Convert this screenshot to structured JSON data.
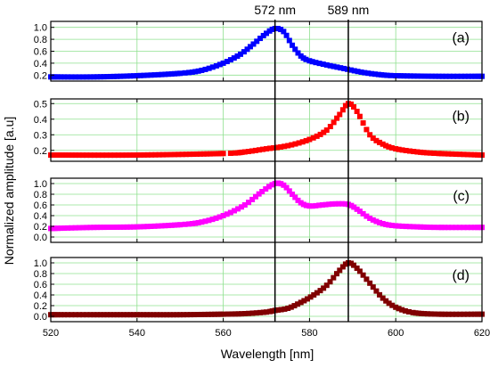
{
  "chart_data": {
    "type": "line",
    "xlabel": "Wavelength [nm]",
    "ylabel": "Normalized amplitude [a.u]",
    "xlim": [
      520,
      620
    ],
    "xticks": [
      520,
      540,
      560,
      580,
      600,
      620
    ],
    "grid": true,
    "reference_lines": [
      {
        "x": 572,
        "label": "572 nm"
      },
      {
        "x": 589,
        "label": "589 nm"
      }
    ],
    "panels": [
      {
        "label": "(a)",
        "color": "#0000ff",
        "ylim": [
          0.1,
          1.1
        ],
        "yticks": [
          0.2,
          0.4,
          0.6,
          0.8,
          1.0
        ],
        "yticklabels": [
          "0.2",
          "0.4",
          "0.6",
          "0.8",
          "1.0"
        ],
        "points": [
          [
            520,
            0.17
          ],
          [
            530,
            0.17
          ],
          [
            540,
            0.19
          ],
          [
            550,
            0.23
          ],
          [
            555,
            0.28
          ],
          [
            560,
            0.4
          ],
          [
            564,
            0.55
          ],
          [
            567,
            0.72
          ],
          [
            570,
            0.9
          ],
          [
            572,
            0.98
          ],
          [
            574,
            0.93
          ],
          [
            576,
            0.7
          ],
          [
            578,
            0.52
          ],
          [
            580,
            0.44
          ],
          [
            584,
            0.37
          ],
          [
            588,
            0.31
          ],
          [
            592,
            0.25
          ],
          [
            596,
            0.21
          ],
          [
            600,
            0.19
          ],
          [
            610,
            0.18
          ],
          [
            620,
            0.18
          ]
        ]
      },
      {
        "label": "(b)",
        "color": "#ff0000",
        "ylim": [
          0.13,
          0.53
        ],
        "yticks": [
          0.2,
          0.3,
          0.4,
          0.5
        ],
        "yticklabels": [
          "0.2",
          "0.3",
          "0.4",
          "0.5"
        ],
        "points": [
          [
            520,
            0.17
          ],
          [
            540,
            0.17
          ],
          [
            560,
            0.18
          ],
          [
            565,
            0.19
          ],
          [
            570,
            0.21
          ],
          [
            575,
            0.23
          ],
          [
            580,
            0.27
          ],
          [
            584,
            0.33
          ],
          [
            587,
            0.43
          ],
          [
            589,
            0.5
          ],
          [
            591,
            0.45
          ],
          [
            594,
            0.3
          ],
          [
            597,
            0.24
          ],
          [
            600,
            0.21
          ],
          [
            605,
            0.19
          ],
          [
            610,
            0.18
          ],
          [
            620,
            0.17
          ]
        ]
      },
      {
        "label": "(c)",
        "color": "#ff00ff",
        "ylim": [
          -0.1,
          1.1
        ],
        "yticks": [
          0.0,
          0.2,
          0.4,
          0.6,
          0.8,
          1.0
        ],
        "yticklabels": [
          "0.0",
          "0.2",
          "0.4",
          "0.6",
          "0.8",
          "1.0"
        ],
        "points": [
          [
            520,
            0.16
          ],
          [
            530,
            0.18
          ],
          [
            540,
            0.19
          ],
          [
            550,
            0.23
          ],
          [
            555,
            0.28
          ],
          [
            560,
            0.4
          ],
          [
            565,
            0.6
          ],
          [
            569,
            0.85
          ],
          [
            572,
            1.0
          ],
          [
            574,
            0.97
          ],
          [
            576,
            0.8
          ],
          [
            578,
            0.64
          ],
          [
            580,
            0.58
          ],
          [
            583,
            0.6
          ],
          [
            586,
            0.62
          ],
          [
            589,
            0.61
          ],
          [
            591,
            0.52
          ],
          [
            594,
            0.35
          ],
          [
            597,
            0.25
          ],
          [
            600,
            0.21
          ],
          [
            605,
            0.19
          ],
          [
            610,
            0.18
          ],
          [
            620,
            0.18
          ]
        ]
      },
      {
        "label": "(d)",
        "color": "#800000",
        "ylim": [
          -0.1,
          1.1
        ],
        "yticks": [
          0.0,
          0.2,
          0.4,
          0.6,
          0.8,
          1.0
        ],
        "yticklabels": [
          "0.0",
          "0.2",
          "0.4",
          "0.6",
          "0.8",
          "1.0"
        ],
        "points": [
          [
            520,
            0.03
          ],
          [
            530,
            0.03
          ],
          [
            540,
            0.03
          ],
          [
            550,
            0.03
          ],
          [
            560,
            0.04
          ],
          [
            565,
            0.05
          ],
          [
            570,
            0.08
          ],
          [
            572,
            0.11
          ],
          [
            575,
            0.15
          ],
          [
            578,
            0.26
          ],
          [
            581,
            0.4
          ],
          [
            584,
            0.58
          ],
          [
            587,
            0.86
          ],
          [
            589,
            1.0
          ],
          [
            591,
            0.9
          ],
          [
            594,
            0.62
          ],
          [
            597,
            0.34
          ],
          [
            600,
            0.17
          ],
          [
            604,
            0.07
          ],
          [
            610,
            0.04
          ],
          [
            620,
            0.04
          ]
        ]
      }
    ]
  }
}
